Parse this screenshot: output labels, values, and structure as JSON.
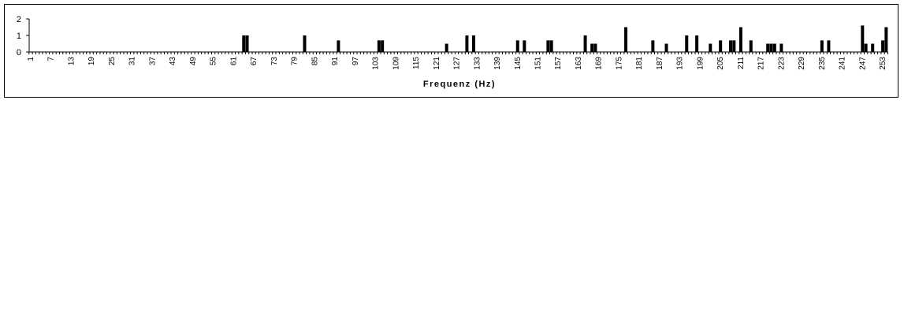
{
  "chart_data": {
    "type": "bar",
    "xlabel": "Frequenz (Hz)",
    "ylabel": "",
    "ylim": [
      0,
      2
    ],
    "y_ticks": [
      0,
      1,
      2
    ],
    "x_tick_labels": [
      "1",
      "7",
      "13",
      "19",
      "25",
      "31",
      "37",
      "43",
      "49",
      "55",
      "61",
      "67",
      "73",
      "79",
      "85",
      "91",
      "97",
      "103",
      "109",
      "115",
      "121",
      "127",
      "133",
      "139",
      "145",
      "151",
      "157",
      "163",
      "169",
      "175",
      "181",
      "187",
      "193",
      "199",
      "205",
      "211",
      "217",
      "223",
      "229",
      "235",
      "241",
      "247",
      "253"
    ],
    "categories_range": [
      1,
      254
    ],
    "values": [
      {
        "x": 64,
        "y": 1.0
      },
      {
        "x": 65,
        "y": 1.0
      },
      {
        "x": 82,
        "y": 1.0
      },
      {
        "x": 92,
        "y": 0.7
      },
      {
        "x": 104,
        "y": 0.7
      },
      {
        "x": 105,
        "y": 0.7
      },
      {
        "x": 124,
        "y": 0.5
      },
      {
        "x": 130,
        "y": 1.0
      },
      {
        "x": 132,
        "y": 1.0
      },
      {
        "x": 145,
        "y": 0.7
      },
      {
        "x": 147,
        "y": 0.7
      },
      {
        "x": 154,
        "y": 0.7
      },
      {
        "x": 155,
        "y": 0.7
      },
      {
        "x": 165,
        "y": 1.0
      },
      {
        "x": 167,
        "y": 0.5
      },
      {
        "x": 168,
        "y": 0.5
      },
      {
        "x": 177,
        "y": 1.5
      },
      {
        "x": 185,
        "y": 0.7
      },
      {
        "x": 189,
        "y": 0.5
      },
      {
        "x": 195,
        "y": 1.0
      },
      {
        "x": 198,
        "y": 1.0
      },
      {
        "x": 202,
        "y": 0.5
      },
      {
        "x": 205,
        "y": 0.7
      },
      {
        "x": 208,
        "y": 0.7
      },
      {
        "x": 209,
        "y": 0.7
      },
      {
        "x": 211,
        "y": 1.5
      },
      {
        "x": 214,
        "y": 0.7
      },
      {
        "x": 219,
        "y": 0.5
      },
      {
        "x": 220,
        "y": 0.5
      },
      {
        "x": 221,
        "y": 0.5
      },
      {
        "x": 223,
        "y": 0.5
      },
      {
        "x": 235,
        "y": 0.7
      },
      {
        "x": 237,
        "y": 0.7
      },
      {
        "x": 247,
        "y": 1.6
      },
      {
        "x": 248,
        "y": 0.5
      },
      {
        "x": 250,
        "y": 0.5
      },
      {
        "x": 253,
        "y": 0.7
      },
      {
        "x": 254,
        "y": 1.5
      }
    ],
    "bar_color": "#000000",
    "grid": false,
    "legend": "none"
  }
}
